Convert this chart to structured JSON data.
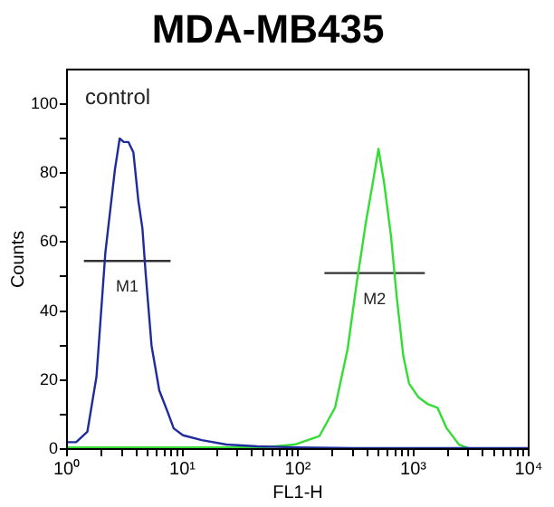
{
  "chart_data": {
    "type": "line",
    "title": "MDA-MB435",
    "xlabel": "FL1-H",
    "ylabel": "Counts",
    "log": "x",
    "grid": false,
    "legend": false,
    "xlim": [
      1,
      10000
    ],
    "xticks": [
      {
        "value": 1,
        "label": "10⁰"
      },
      {
        "value": 2,
        "label": null
      },
      {
        "value": 3,
        "label": null
      },
      {
        "value": 4,
        "label": null
      },
      {
        "value": 5,
        "label": null
      },
      {
        "value": 6,
        "label": null
      },
      {
        "value": 7,
        "label": null
      },
      {
        "value": 8,
        "label": null
      },
      {
        "value": 9,
        "label": null
      },
      {
        "value": 10,
        "label": "10¹"
      },
      {
        "value": 20,
        "label": null
      },
      {
        "value": 30,
        "label": null
      },
      {
        "value": 40,
        "label": null
      },
      {
        "value": 50,
        "label": null
      },
      {
        "value": 60,
        "label": null
      },
      {
        "value": 70,
        "label": null
      },
      {
        "value": 80,
        "label": null
      },
      {
        "value": 90,
        "label": null
      },
      {
        "value": 100,
        "label": "10²"
      },
      {
        "value": 200,
        "label": null
      },
      {
        "value": 300,
        "label": null
      },
      {
        "value": 400,
        "label": null
      },
      {
        "value": 500,
        "label": null
      },
      {
        "value": 600,
        "label": null
      },
      {
        "value": 700,
        "label": null
      },
      {
        "value": 800,
        "label": null
      },
      {
        "value": 900,
        "label": null
      },
      {
        "value": 1000,
        "label": "10³"
      },
      {
        "value": 2000,
        "label": null
      },
      {
        "value": 3000,
        "label": null
      },
      {
        "value": 4000,
        "label": null
      },
      {
        "value": 5000,
        "label": null
      },
      {
        "value": 6000,
        "label": null
      },
      {
        "value": 7000,
        "label": null
      },
      {
        "value": 8000,
        "label": null
      },
      {
        "value": 9000,
        "label": null
      },
      {
        "value": 10000,
        "label": "10⁴"
      }
    ],
    "ylim": [
      0,
      110
    ],
    "yticks": [
      0,
      {
        "value": 10,
        "label": null
      },
      20,
      {
        "value": 30,
        "label": null
      },
      40,
      {
        "value": 50,
        "label": null
      },
      60,
      {
        "value": 70,
        "label": null
      },
      80,
      {
        "value": 90,
        "label": null
      },
      100
    ],
    "series": [
      {
        "color": "#1f2a9c",
        "x": [
          1,
          1.2,
          1.5,
          1.8,
          2.15,
          2.6,
          2.86,
          3.1,
          3.4,
          3.76,
          4.15,
          4.5,
          4.8,
          5.4,
          6.3,
          7.4,
          8.4,
          10.1,
          14.7,
          24,
          44.5,
          94,
          300,
          1000,
          3000,
          10000
        ],
        "values": [
          2,
          2,
          5,
          21,
          57,
          81,
          90,
          89,
          89,
          86,
          72,
          64,
          51,
          30,
          17,
          11,
          6,
          4,
          2.6,
          1.3,
          0.8,
          0.5,
          0.3,
          0.3,
          0.3,
          0.3
        ]
      },
      {
        "color": "#33dd33",
        "x": [
          1,
          10,
          50,
          94,
          154,
          210,
          270,
          320,
          390,
          440,
          500,
          560,
          640,
          720,
          820,
          920,
          1110,
          1340,
          1620,
          1950,
          2490,
          2990,
          10000
        ],
        "values": [
          0.5,
          0.5,
          0.5,
          1.3,
          3.8,
          12,
          29,
          47,
          66,
          76,
          87,
          77,
          62,
          44,
          27,
          19,
          15,
          13,
          12,
          6,
          1.3,
          0.3,
          0
        ]
      },
      {
        "type": "line",
        "name": "M1",
        "color": "#333333",
        "x": [
          1.4,
          7.9
        ],
        "values": [
          54.5,
          54.5
        ]
      },
      {
        "type": "line",
        "name": "M2",
        "color": "#333333",
        "x": [
          170,
          1260
        ],
        "values": [
          51,
          51
        ]
      }
    ],
    "annotations": [
      "control"
    ]
  }
}
